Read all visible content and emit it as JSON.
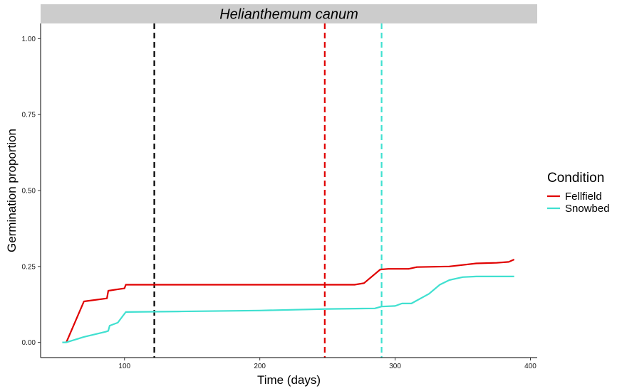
{
  "chart_data": {
    "type": "line",
    "facet_title": "Helianthemum canum",
    "xlabel": "Time (days)",
    "ylabel": "Germination proportion",
    "xlim": [
      38,
      405
    ],
    "ylim": [
      -0.05,
      1.05
    ],
    "x_ticks": [
      100,
      200,
      300,
      400
    ],
    "x_tick_labels": [
      "100",
      "200",
      "300",
      "400"
    ],
    "y_ticks": [
      0,
      0.25,
      0.5,
      0.75,
      1
    ],
    "y_tick_labels": [
      "0.00",
      "0.25",
      "0.50",
      "0.75",
      "1.00"
    ],
    "grid": false,
    "legend": {
      "title": "Condition",
      "position": "right",
      "entries": [
        "Fellfield",
        "Snowbed"
      ]
    },
    "series": [
      {
        "name": "Fellfield",
        "color": "#e00000",
        "points": [
          [
            57,
            0.0
          ],
          [
            70,
            0.135
          ],
          [
            87,
            0.145
          ],
          [
            88,
            0.17
          ],
          [
            95,
            0.175
          ],
          [
            100,
            0.178
          ],
          [
            101,
            0.19
          ],
          [
            150,
            0.19
          ],
          [
            200,
            0.19
          ],
          [
            250,
            0.19
          ],
          [
            270,
            0.19
          ],
          [
            277,
            0.195
          ],
          [
            289,
            0.24
          ],
          [
            295,
            0.242
          ],
          [
            310,
            0.242
          ],
          [
            316,
            0.248
          ],
          [
            340,
            0.25
          ],
          [
            350,
            0.255
          ],
          [
            360,
            0.26
          ],
          [
            375,
            0.262
          ],
          [
            384,
            0.265
          ],
          [
            388,
            0.273
          ]
        ]
      },
      {
        "name": "Snowbed",
        "color": "#40e0d0",
        "points": [
          [
            54,
            0.0
          ],
          [
            57,
            0.0
          ],
          [
            70,
            0.018
          ],
          [
            86,
            0.035
          ],
          [
            88,
            0.038
          ],
          [
            89,
            0.055
          ],
          [
            95,
            0.065
          ],
          [
            101,
            0.1
          ],
          [
            140,
            0.102
          ],
          [
            200,
            0.105
          ],
          [
            250,
            0.11
          ],
          [
            285,
            0.112
          ],
          [
            290,
            0.118
          ],
          [
            300,
            0.12
          ],
          [
            305,
            0.128
          ],
          [
            312,
            0.128
          ],
          [
            325,
            0.16
          ],
          [
            333,
            0.19
          ],
          [
            340,
            0.205
          ],
          [
            350,
            0.215
          ],
          [
            360,
            0.217
          ],
          [
            380,
            0.217
          ],
          [
            388,
            0.217
          ]
        ]
      }
    ],
    "vlines": [
      {
        "x": 122,
        "color": "#000000",
        "style": "dashed"
      },
      {
        "x": 248,
        "color": "#e00000",
        "style": "dashed"
      },
      {
        "x": 290,
        "color": "#40e0d0",
        "style": "dashed"
      }
    ]
  }
}
